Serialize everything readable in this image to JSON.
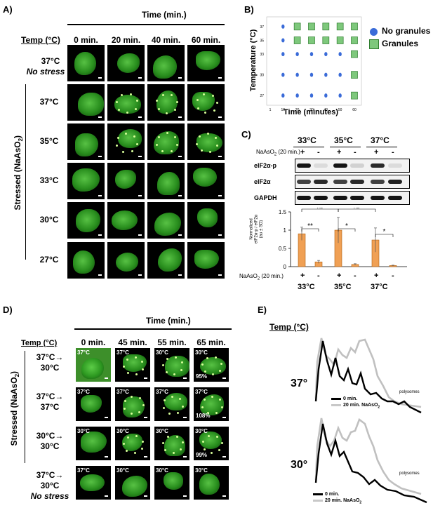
{
  "panelA": {
    "label": "A)",
    "time_header": "Time (min.)",
    "temp_header": "Temp (°C)",
    "columns": [
      "0 min.",
      "20 min.",
      "40 min.",
      "60 min."
    ],
    "row_nostress": [
      "37°C",
      "No stress"
    ],
    "stressed_label": "Stressed (NaAsO",
    "stressed_sub": "2",
    "stressed_close": ")",
    "rows": [
      "37°C",
      "35°C",
      "33°C",
      "30°C",
      "27°C"
    ]
  },
  "panelB": {
    "label": "B)",
    "ylabel": "Temperature (°C)",
    "xlabel": "Time (minutes)",
    "legend": [
      "No granules",
      "Granules"
    ],
    "chart_data": {
      "type": "scatter",
      "x_ticks": [
        1,
        10,
        20,
        30,
        40,
        50,
        60
      ],
      "y_ticks": [
        27,
        30,
        33,
        35,
        37
      ],
      "xlim": [
        1,
        60
      ],
      "ylim": [
        26,
        38
      ],
      "series": [
        {
          "name": "No granules",
          "points": [
            [
              10,
              37
            ],
            [
              10,
              35
            ],
            [
              10,
              33
            ],
            [
              20,
              33
            ],
            [
              30,
              33
            ],
            [
              40,
              33
            ],
            [
              50,
              33
            ],
            [
              10,
              30
            ],
            [
              20,
              30
            ],
            [
              30,
              30
            ],
            [
              40,
              30
            ],
            [
              50,
              30
            ],
            [
              10,
              27
            ],
            [
              20,
              27
            ],
            [
              30,
              27
            ],
            [
              40,
              27
            ],
            [
              50,
              27
            ]
          ]
        },
        {
          "name": "Granules",
          "points": [
            [
              20,
              37
            ],
            [
              30,
              37
            ],
            [
              40,
              37
            ],
            [
              50,
              37
            ],
            [
              60,
              37
            ],
            [
              20,
              35
            ],
            [
              30,
              35
            ],
            [
              40,
              35
            ],
            [
              50,
              35
            ],
            [
              60,
              35
            ],
            [
              60,
              33
            ],
            [
              60,
              30
            ],
            [
              60,
              27
            ]
          ]
        }
      ]
    }
  },
  "panelC": {
    "label": "C)",
    "temps": [
      "33°C",
      "35°C",
      "37°C"
    ],
    "treat_label": "NaAsO",
    "treat_sub": "2",
    "treat_suffix": " (20 min.)",
    "signs": [
      "+",
      "-",
      "+",
      "-",
      "+",
      "-"
    ],
    "blots": [
      "eIF2α-p",
      "eIF2α",
      "GAPDH"
    ],
    "ylabel_lines": [
      "Normalized",
      "eIF2α-p / eIF2α",
      "(au ± SD)"
    ],
    "sig": [
      "ns",
      "ns",
      "**",
      "*",
      "*"
    ],
    "chart_data": {
      "type": "bar",
      "categories": [
        "33°C +",
        "33°C -",
        "35°C +",
        "35°C -",
        "37°C +",
        "37°C -"
      ],
      "values": [
        0.9,
        0.13,
        1.0,
        0.06,
        0.73,
        0.03
      ],
      "errors": [
        0.18,
        0.04,
        0.35,
        0.02,
        0.33,
        0.01
      ],
      "y_ticks": [
        "0",
        "0.5",
        "1",
        "1.5"
      ],
      "ylim": [
        0,
        1.5
      ]
    }
  },
  "panelD": {
    "label": "D)",
    "time_header": "Time (min.)",
    "temp_header": "Temp (°C)",
    "columns": [
      "0 min.",
      "45 min.",
      "55 min.",
      "65 min."
    ],
    "stressed_label": "Stressed (NaAsO",
    "stressed_sub": "2",
    "stressed_close": ")",
    "rows": [
      {
        "label": [
          "37°C→",
          "30°C"
        ],
        "cells": [
          "37°C",
          "37°C",
          "30°C",
          "30°C"
        ],
        "pct": "95%"
      },
      {
        "label": [
          "37°C→",
          "37°C"
        ],
        "cells": [
          "37°C",
          "37°C",
          "37°C",
          "37°C"
        ],
        "pct": "108%"
      },
      {
        "label": [
          "30°C→",
          "30°C"
        ],
        "cells": [
          "30°C",
          "30°C",
          "30°C",
          "30°C"
        ],
        "pct": "99%"
      },
      {
        "label": [
          "37°C→",
          "30°C",
          "No stress"
        ],
        "cells": [
          "37°C",
          "30°C",
          "30°C",
          "30°C"
        ],
        "pct": ""
      }
    ]
  },
  "panelE": {
    "label": "E)",
    "temp_header": "Temp (°C)",
    "profiles": [
      {
        "temp": "37°",
        "polysomes": "polysomes",
        "legend": [
          "0 min.",
          "20 min. NaAsO"
        ]
      },
      {
        "temp": "30°",
        "polysomes": "polysomes",
        "legend": [
          "0 min.",
          "20 min. NaAsO"
        ]
      }
    ],
    "sub": "2"
  }
}
